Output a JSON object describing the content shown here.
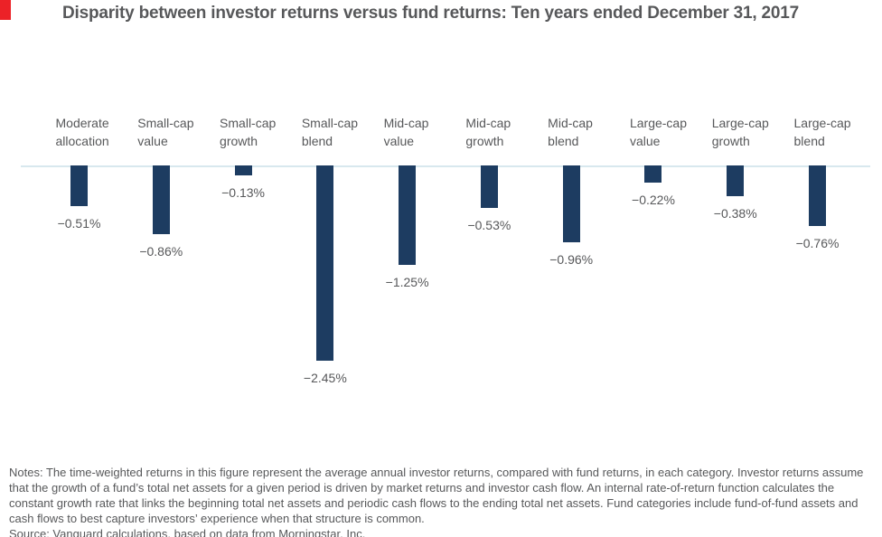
{
  "header": {
    "accent_color": "#ec2227"
  },
  "chart_data": {
    "type": "bar",
    "title": "Disparity between investor returns versus fund returns: Ten years ended December 31, 2017",
    "categories": [
      "Moderate allocation",
      "Small-cap value",
      "Small-cap growth",
      "Small-cap blend",
      "Mid-cap value",
      "Mid-cap growth",
      "Mid-cap blend",
      "Large-cap value",
      "Large-cap growth",
      "Large-cap blend"
    ],
    "values": [
      -0.51,
      -0.86,
      -0.13,
      -2.45,
      -1.25,
      -0.53,
      -0.96,
      -0.22,
      -0.38,
      -0.76
    ],
    "value_labels": [
      "−0.51%",
      "−0.86%",
      "−0.13%",
      "−2.45%",
      "−1.25%",
      "−0.53%",
      "−0.96%",
      "−0.22%",
      "−0.38%",
      "−0.76%"
    ],
    "unit": "%",
    "xlabel": "",
    "ylabel": "",
    "ylim": [
      -2.6,
      0
    ],
    "grid": false,
    "legend": "none",
    "bar_color": "#1d3c61",
    "baseline_color": "#d8e8ee",
    "label_color": "#57585a"
  },
  "notes": {
    "lines": [
      "Notes: The time-weighted returns in this figure represent the average annual investor returns, compared with fund returns, in each category. Investor returns assume",
      "that the growth of a fund’s total net assets for a given period is driven by market returns and investor cash flow. An internal rate-of-return function calculates the",
      "constant growth rate that links the beginning total net assets and periodic cash flows to the ending total net assets. Fund categories include fund-of-fund assets and",
      "cash flows to best capture investors’ experience when that structure is common."
    ],
    "source": "Source: Vanguard calculations, based on data from Morningstar, Inc."
  }
}
